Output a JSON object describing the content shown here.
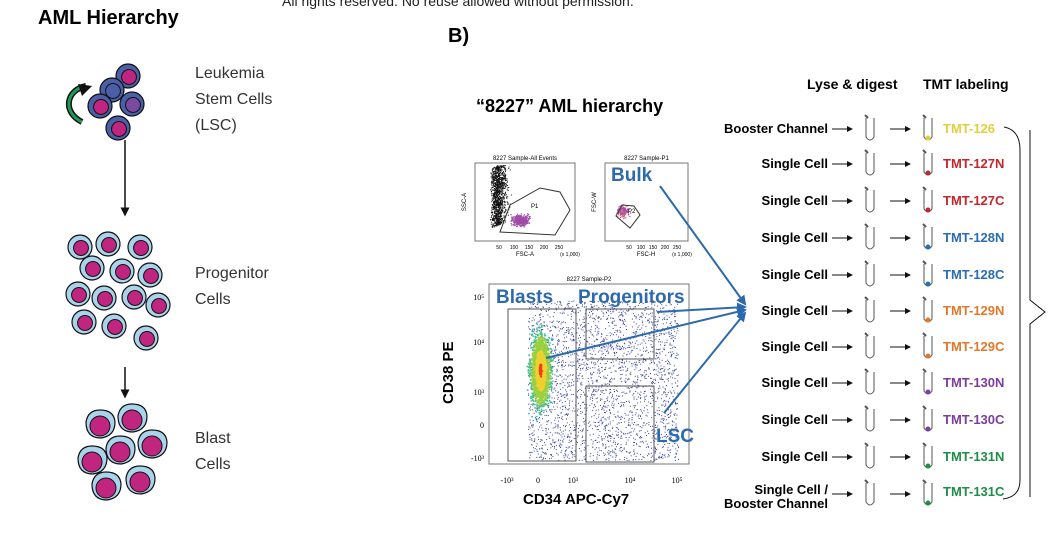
{
  "copyright": "All rights reserved. No reuse allowed without permission.",
  "panel_a": {
    "title": "AML Hierarchy",
    "stages": [
      {
        "label": [
          "Leukemia",
          "Stem Cells",
          "(LSC)"
        ]
      },
      {
        "label": [
          "Progenitor",
          "Cells"
        ]
      },
      {
        "label": [
          "Blast",
          "Cells"
        ]
      }
    ]
  },
  "panel_b": {
    "letter": "B)",
    "title": "“8227” AML hierarchy",
    "plot1": {
      "title": "8227 Sample-All Events",
      "xlabel": "FSC-A",
      "ylabel": "SSC-A",
      "gate": "P1",
      "scale": "(x 1,000)",
      "xticks": [
        "50",
        "100",
        "150",
        "200",
        "250"
      ],
      "yticks": [
        "50",
        "100",
        "150",
        "200",
        "250"
      ]
    },
    "plot2": {
      "title": "8227 Sample-P1",
      "xlabel": "FSC-H",
      "ylabel": "FSC-W",
      "gate": "P2",
      "scale": "(x 1,000)",
      "xticks": [
        "50",
        "100",
        "150",
        "200",
        "250"
      ],
      "yticks": [
        "50",
        "100",
        "150",
        "200",
        "250"
      ],
      "annotation": "Bulk"
    },
    "plot3": {
      "title": "8227 Sample-P2",
      "xlabel": "CD34 APC-Cy7",
      "ylabel": "CD38 PE",
      "xticks": [
        "-10³",
        "0",
        "10³",
        "10⁴",
        "10⁵"
      ],
      "yticks": [
        "10⁵",
        "10⁴",
        "10³",
        "0",
        "-10³"
      ],
      "gates": [
        "Blasts",
        "Progenitors",
        "LSC"
      ]
    },
    "headers": {
      "lyse": "Lyse & digest",
      "tmt": "TMT labeling"
    },
    "rows": [
      {
        "label": "Booster Channel",
        "tag": "TMT-126",
        "color": "#e3cf38"
      },
      {
        "label": "Single Cell",
        "tag": "TMT-127N",
        "color": "#c4262c"
      },
      {
        "label": "Single Cell",
        "tag": "TMT-127C",
        "color": "#c4262c"
      },
      {
        "label": "Single Cell",
        "tag": "TMT-128N",
        "color": "#2b6db3"
      },
      {
        "label": "Single Cell",
        "tag": "TMT-128C",
        "color": "#2b6db3"
      },
      {
        "label": "Single Cell",
        "tag": "TMT-129N",
        "color": "#e2782a"
      },
      {
        "label": "Single Cell",
        "tag": "TMT-129C",
        "color": "#e2782a"
      },
      {
        "label": "Single Cell",
        "tag": "TMT-130N",
        "color": "#7a3e9e"
      },
      {
        "label": "Single Cell",
        "tag": "TMT-130C",
        "color": "#7a3e9e"
      },
      {
        "label": "Single Cell",
        "tag": "TMT-131N",
        "color": "#1e8e4a"
      },
      {
        "label": "Single Cell /",
        "label2": "Booster Channel",
        "tag": "TMT-131C",
        "color": "#1e8e4a"
      }
    ],
    "colors": {
      "annotation_blue": "#2d6aad",
      "cell_magenta": "#c0267f",
      "lsc_cell_blue": "#4a5fa8",
      "progenitor_blue": "#a9d3ea"
    }
  }
}
